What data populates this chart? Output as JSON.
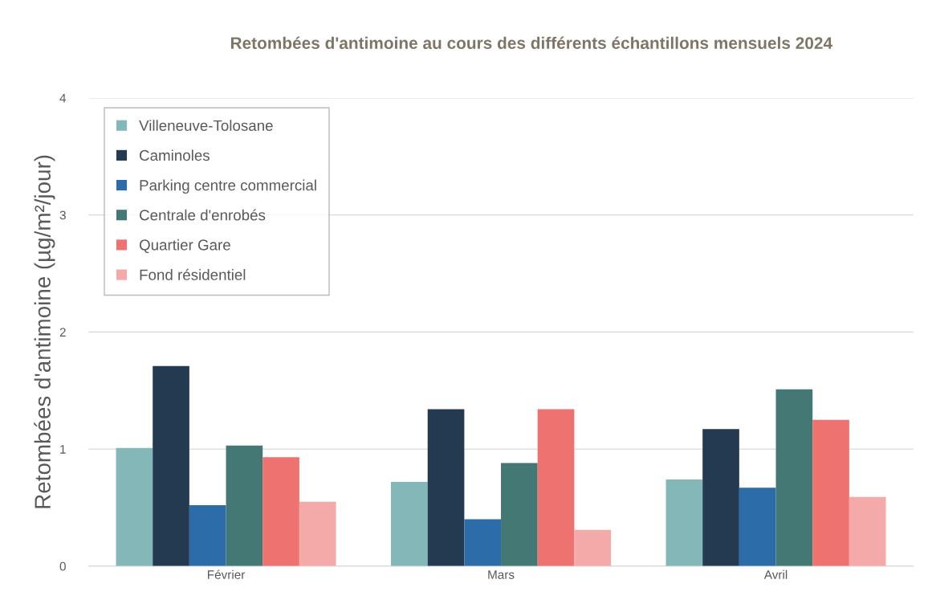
{
  "chart_data": {
    "type": "bar",
    "title": "Retombées d'antimoine au cours des différents échantillons mensuels 2024",
    "ylabel": "Retombées d'antimoine (µg/m²/jour)",
    "categories": [
      "Février",
      "Mars",
      "Avril"
    ],
    "series": [
      {
        "name": "Villeneuve-Tolosane",
        "color": "#84b7b7",
        "values": [
          1.01,
          0.72,
          0.74
        ]
      },
      {
        "name": "Caminoles",
        "color": "#243a51",
        "values": [
          1.71,
          1.34,
          1.17
        ]
      },
      {
        "name": "Parking centre commercial",
        "color": "#2b6ca9",
        "values": [
          0.52,
          0.4,
          0.67
        ]
      },
      {
        "name": "Centrale d'enrobés",
        "color": "#437874",
        "values": [
          1.03,
          0.88,
          1.51
        ]
      },
      {
        "name": "Quartier Gare",
        "color": "#ee7370",
        "values": [
          0.93,
          1.34,
          1.25
        ]
      },
      {
        "name": "Fond résidentiel",
        "color": "#f4aaa9",
        "values": [
          0.55,
          0.31,
          0.59
        ]
      }
    ],
    "ylim": [
      0,
      4
    ],
    "yticks": [
      0,
      1,
      2,
      3,
      4
    ],
    "grid": "y",
    "legend": "top left"
  }
}
